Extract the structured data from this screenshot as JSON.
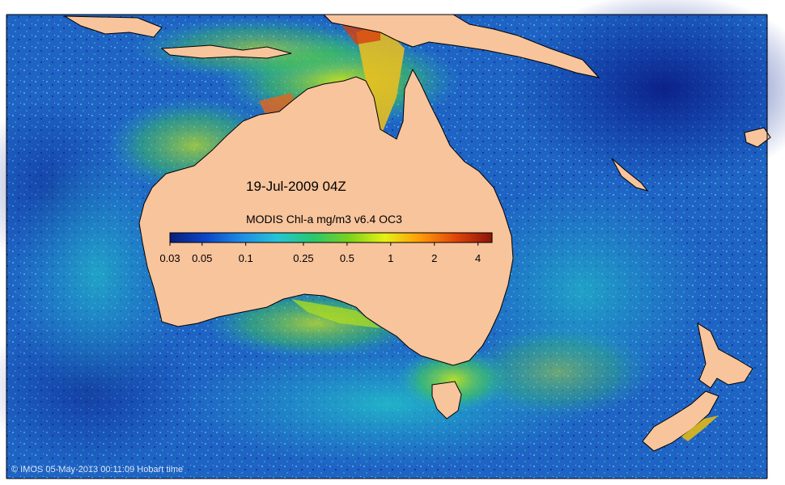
{
  "map": {
    "title": "19-Jul-2009 04Z",
    "credit": "© IMOS 05-May-2013 00:11:09 Hobart time",
    "land_color": "#f8c49c",
    "ocean_color": "#1e5fc0"
  },
  "colorbar": {
    "title": "MODIS Chl-a mg/m3 v6.4 OC3",
    "ticks": [
      "0.03",
      "0.05",
      "0.1",
      "0.25",
      "0.5",
      "1",
      "2",
      "4"
    ],
    "tick_values": [
      0.03,
      0.05,
      0.1,
      0.25,
      0.5,
      1,
      2,
      4
    ],
    "range": [
      0.03,
      5
    ],
    "scale": "log",
    "colors": [
      "#0a1e7a",
      "#0b46c8",
      "#1e8ce6",
      "#25c4d6",
      "#26c86e",
      "#7ad21e",
      "#e6f014",
      "#ff9a0a",
      "#e0440a",
      "#8a1408"
    ]
  }
}
